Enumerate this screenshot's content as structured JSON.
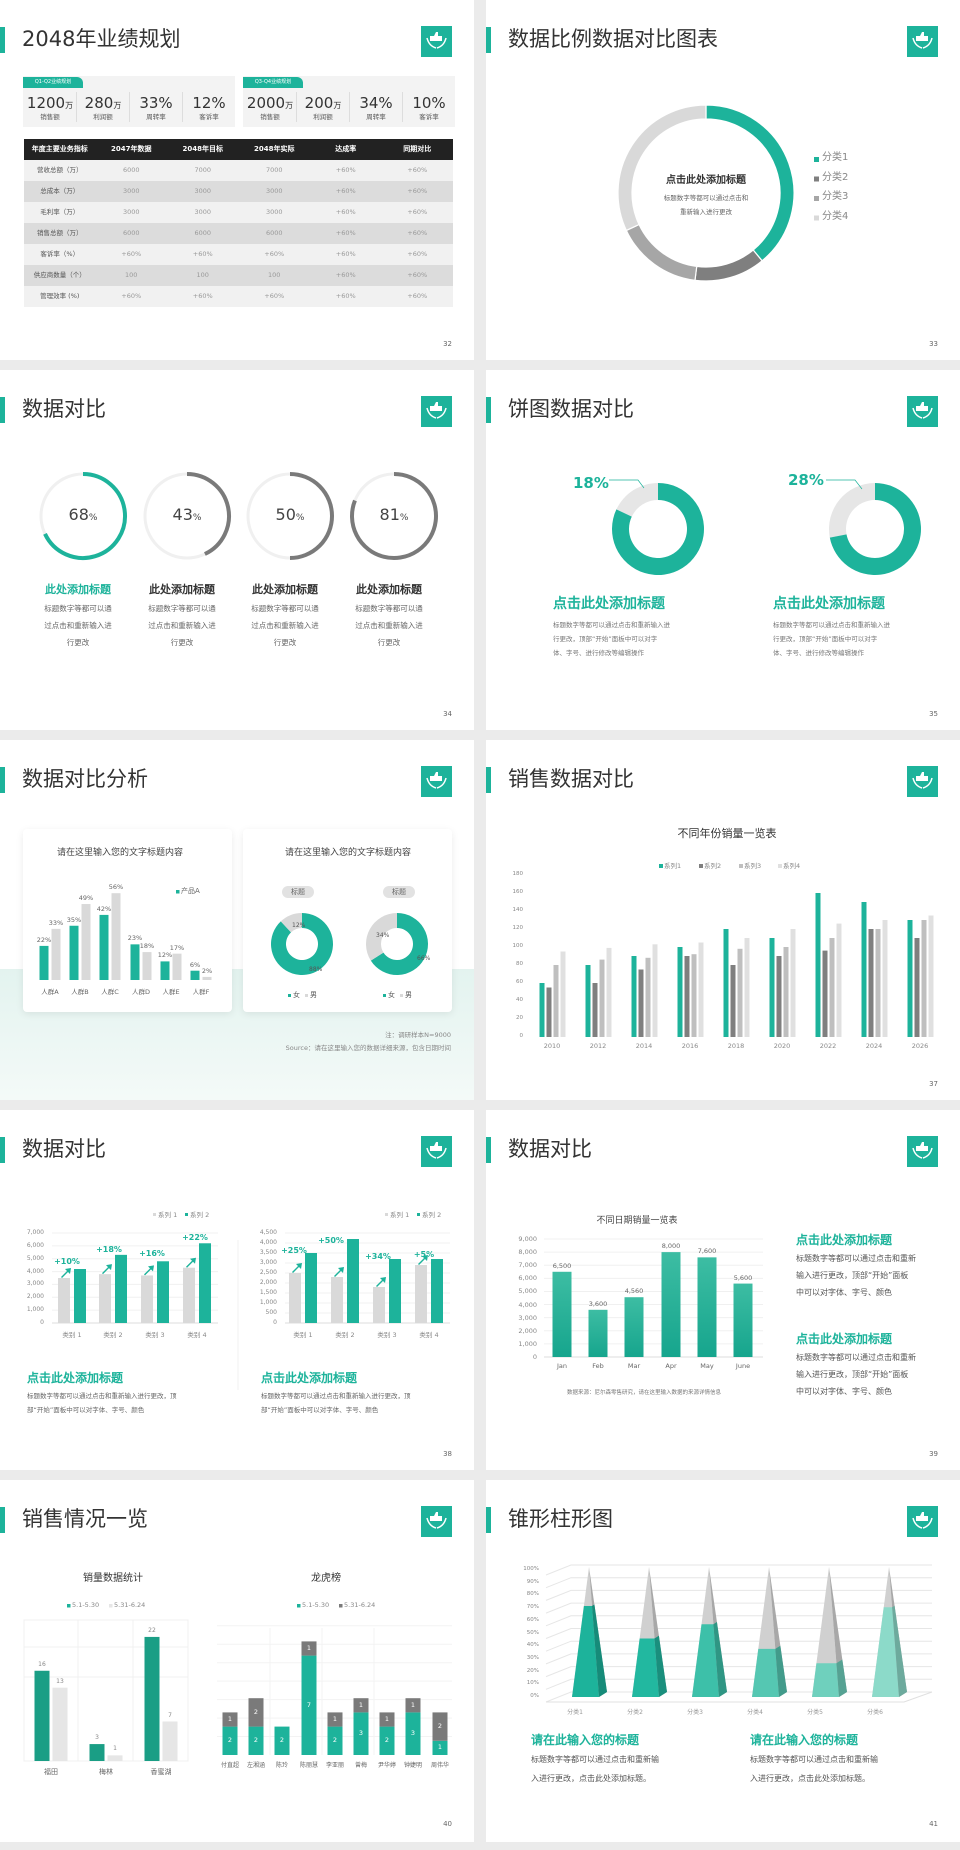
{
  "colors": {
    "accent": "#1db39b",
    "dark_gray": "#7a7a7a",
    "mid_gray": "#a6a6a6",
    "light_gray": "#d9d9d9",
    "header_black": "#222222"
  },
  "slides": [
    {
      "page": "32",
      "title": "2048年业绩规划",
      "panels": [
        {
          "tag": "Q1-Q2业绩规划",
          "stats": [
            {
              "value": "1200",
              "unit": "万",
              "label": "销售额"
            },
            {
              "value": "280",
              "unit": "万",
              "label": "利润额"
            },
            {
              "value": "33%",
              "unit": "",
              "label": "周转率"
            },
            {
              "value": "12%",
              "unit": "",
              "label": "客诉率"
            }
          ]
        },
        {
          "tag": "Q3-Q4业绩规划",
          "stats": [
            {
              "value": "2000",
              "unit": "万",
              "label": "销售额"
            },
            {
              "value": "200",
              "unit": "万",
              "label": "利润额"
            },
            {
              "value": "34%",
              "unit": "",
              "label": "周转率"
            },
            {
              "value": "10%",
              "unit": "",
              "label": "客诉率"
            }
          ]
        }
      ],
      "table": {
        "headers": [
          "年度主要业务指标",
          "2047年数据",
          "2048年目标",
          "2048年实际",
          "达成率",
          "同期对比"
        ],
        "rows": [
          [
            "营收总额（万）",
            "6000",
            "7000",
            "7000",
            "+60%",
            "+60%"
          ],
          [
            "总成本（万）",
            "3000",
            "3000",
            "3000",
            "+60%",
            "+60%"
          ],
          [
            "毛利率（万）",
            "3000",
            "3000",
            "3000",
            "+60%",
            "+60%"
          ],
          [
            "销售总额（万）",
            "6000",
            "6000",
            "6000",
            "+60%",
            "+60%"
          ],
          [
            "客诉率（%）",
            "+60%",
            "+60%",
            "+60%",
            "+60%",
            "+60%"
          ],
          [
            "供应商数量（个）",
            "100",
            "100",
            "100",
            "+60%",
            "+60%"
          ],
          [
            "管理效率 (%)",
            "+60%",
            "+60%",
            "+60%",
            "+60%",
            "+60%"
          ]
        ]
      }
    },
    {
      "page": "33",
      "title": "数据比例数据对比图表",
      "center_title": "点击此处添加标题",
      "center_desc": [
        "标题数字等都可以通过点击和",
        "重新输入进行更改"
      ]
    },
    {
      "page": "34",
      "title": "数据对比",
      "items": [
        {
          "title": "此处添加标题",
          "desc": [
            "标题数字等都可以通",
            "过点击和重新输入进",
            "行更改"
          ]
        },
        {
          "title": "此处添加标题",
          "desc": [
            "标题数字等都可以通",
            "过点击和重新输入进",
            "行更改"
          ]
        },
        {
          "title": "此处添加标题",
          "desc": [
            "标题数字等都可以通",
            "过点击和重新输入进",
            "行更改"
          ]
        },
        {
          "title": "此处添加标题",
          "desc": [
            "标题数字等都可以通",
            "过点击和重新输入进",
            "行更改"
          ]
        }
      ]
    },
    {
      "page": "35",
      "title": "饼图数据对比",
      "items": [
        {
          "label": "18%",
          "title": "点击此处添加标题",
          "desc": [
            "标题数字等都可以通过点击和重新输入进",
            "行更改，顶部“开始”面板中可以对字",
            "体、字号、进行修改等编辑操作"
          ]
        },
        {
          "label": "28%",
          "title": "点击此处添加标题",
          "desc": [
            "标题数字等都可以通过点击和重新输入进",
            "行更改，顶部“开始”面板中可以对字",
            "体、字号、进行修改等编辑操作"
          ]
        }
      ]
    },
    {
      "page": "36",
      "title": "数据对比分析",
      "card_titles": [
        "请在这里输入您的文字标题内容",
        "请在这里输入您的文字标题内容"
      ],
      "pill_labels": [
        "标题",
        "标题"
      ],
      "note": "注：调研样本N=9000",
      "source": "Source：请在这里输入您的数据详细来源，包含日期时间"
    },
    {
      "page": "37",
      "title": "销售数据对比"
    },
    {
      "page": "38",
      "title": "数据对比",
      "items": [
        {
          "title": "点击此处添加标题",
          "desc": [
            "标题数字等都可以通过点击和重新输入进行更改，顶",
            "部“开始”面板中可以对字体、字号、颜色"
          ]
        },
        {
          "title": "点击此处添加标题",
          "desc": [
            "标题数字等都可以通过点击和重新输入进行更改，顶",
            "部“开始”面板中可以对字体、字号、颜色"
          ]
        }
      ]
    },
    {
      "page": "39",
      "title": "数据对比",
      "source": "数据来源：尼尔森零售研究，请在这里输入数据的来源详情信息",
      "items": [
        {
          "title": "点击此处添加标题",
          "desc": [
            "标题数字等都可以通过点击和重新",
            "输入进行更改，顶部“开始”面板",
            "中可以对字体、字号、颜色"
          ]
        },
        {
          "title": "点击此处添加标题",
          "desc": [
            "标题数字等都可以通过点击和重新",
            "输入进行更改，顶部“开始”面板",
            "中可以对字体、字号、颜色"
          ]
        }
      ]
    },
    {
      "page": "40",
      "title": "销售情况一览"
    },
    {
      "page": "41",
      "title": "锥形柱形图",
      "items": [
        {
          "title": "请在此输入您的标题",
          "desc": [
            "标题数字等都可以通过点击和重新输",
            "入进行更改，点击此处添加标题。"
          ]
        },
        {
          "title": "请在此输入您的标题",
          "desc": [
            "标题数字等都可以通过点击和重新输",
            "入进行更改，点击此处添加标题。"
          ]
        }
      ]
    }
  ],
  "chart_data": [
    {
      "type": "pie",
      "slide": "33",
      "categories": [
        "分类1",
        "分类2",
        "分类3",
        "分类4"
      ],
      "values": [
        39,
        13,
        16,
        32
      ],
      "legend": "right"
    },
    {
      "type": "pie",
      "slide": "34",
      "values": [
        68,
        43,
        50,
        81
      ],
      "unit": "%"
    },
    {
      "type": "pie",
      "slide": "35",
      "values": [
        18,
        28
      ],
      "unit": "%"
    },
    {
      "type": "bar",
      "slide": "36",
      "categories": [
        "人群A",
        "人群B",
        "人群C",
        "人群D",
        "人群E",
        "人群F"
      ],
      "series": [
        {
          "name": "产品A",
          "values": [
            22,
            35,
            42,
            23,
            12,
            6
          ]
        },
        {
          "values": [
            33,
            49,
            56,
            18,
            17,
            2
          ]
        }
      ],
      "unit": "%",
      "legend": "top-right"
    },
    {
      "type": "pie",
      "slide": "36",
      "legend_labels": [
        "女",
        "男"
      ],
      "charts": [
        {
          "values": [
            88,
            12
          ]
        },
        {
          "values": [
            66,
            34
          ]
        }
      ],
      "unit": "%"
    },
    {
      "type": "bar",
      "slide": "37",
      "title": "不同年份销量一览表",
      "categories": [
        "2010",
        "2012",
        "2014",
        "2016",
        "2018",
        "2020",
        "2022",
        "2024",
        "2026"
      ],
      "series": [
        {
          "name": "系列1",
          "values": [
            60,
            80,
            90,
            100,
            120,
            110,
            160,
            150,
            130
          ]
        },
        {
          "name": "系列2",
          "values": [
            55,
            60,
            75,
            90,
            80,
            90,
            96,
            120,
            110
          ]
        },
        {
          "name": "系列3",
          "values": [
            80,
            86,
            88,
            92,
            98,
            100,
            110,
            120,
            130
          ]
        },
        {
          "name": "系列4",
          "values": [
            95,
            99,
            103,
            105,
            110,
            120,
            126,
            130,
            135
          ]
        }
      ],
      "yticks": [
        "0",
        "20",
        "40",
        "60",
        "80",
        "100",
        "120",
        "140",
        "160",
        "180"
      ],
      "ylim": [
        0,
        180
      ],
      "legend": "top",
      "grid": false
    },
    {
      "type": "bar",
      "slide": "38",
      "categories": [
        "类别 1",
        "类别 2",
        "类别 3",
        "类别 4"
      ],
      "series": [
        {
          "name": "系列 1",
          "values": [
            3500,
            3800,
            3700,
            4300
          ]
        },
        {
          "name": "系列 2",
          "values": [
            4200,
            5300,
            4800,
            6200
          ]
        }
      ],
      "annotations": [
        "+10%",
        "+18%",
        "+16%",
        "+22%"
      ],
      "yticks": [
        "0",
        "1,000",
        "2,000",
        "3,000",
        "4,000",
        "5,000",
        "6,000",
        "7,000"
      ],
      "ylim": [
        0,
        7000
      ],
      "legend": "top-right",
      "grid": true
    },
    {
      "type": "bar",
      "slide": "38",
      "categories": [
        "类别 1",
        "类别 2",
        "类别 3",
        "类别 4"
      ],
      "series": [
        {
          "name": "系列 1",
          "values": [
            2500,
            2300,
            1800,
            2900
          ]
        },
        {
          "name": "系列 2",
          "values": [
            3500,
            4200,
            3200,
            3200
          ]
        }
      ],
      "annotations": [
        "+25%",
        "+50%",
        "+34%",
        "+5%"
      ],
      "yticks": [
        "0",
        "500",
        "1,000",
        "1,500",
        "2,000",
        "2,500",
        "3,000",
        "3,500",
        "4,000",
        "4,500"
      ],
      "ylim": [
        0,
        4500
      ],
      "legend": "top-right",
      "grid": true
    },
    {
      "type": "bar",
      "slide": "39",
      "title": "不同日期销量一览表",
      "categories": [
        "Jan",
        "Feb",
        "Mar",
        "Apr",
        "May",
        "June"
      ],
      "values": [
        6500,
        3600,
        4560,
        8000,
        7600,
        5600
      ],
      "data_labels": [
        "6,500",
        "3,600",
        "4,560",
        "8,000",
        "7,600",
        "5,600"
      ],
      "yticks": [
        "0",
        "1,000",
        "2,000",
        "3,000",
        "4,000",
        "5,000",
        "6,000",
        "7,000",
        "8,000",
        "9,000"
      ],
      "ylim": [
        0,
        9000
      ],
      "grid": true
    },
    {
      "type": "bar",
      "slide": "40",
      "title": "销量数据统计",
      "categories": [
        "福田",
        "梅林",
        "香蜜湖"
      ],
      "series": [
        {
          "name": "5.1-5.30",
          "values": [
            16,
            3,
            22
          ]
        },
        {
          "name": "5.31-6.24",
          "values": [
            13,
            1,
            7
          ]
        }
      ],
      "legend": "top",
      "grid": true
    },
    {
      "type": "bar",
      "slide": "40",
      "title": "龙虎榜",
      "stacked": true,
      "categories": [
        "付直超",
        "左湘涵",
        "陈玲",
        "陈丽慧",
        "李亚丽",
        "曾梅",
        "尹华婷",
        "钟婕明",
        "周伟华"
      ],
      "series": [
        {
          "name": "5.1-5.30",
          "values": [
            2,
            2,
            2,
            7,
            2,
            3,
            2,
            3,
            1
          ]
        },
        {
          "name": "5.31-6.24",
          "values": [
            1,
            2,
            0,
            1,
            1,
            1,
            1,
            1,
            2
          ]
        }
      ],
      "legend": "top",
      "grid": true
    },
    {
      "type": "bar",
      "slide": "41",
      "categories": [
        "分类1",
        "分类2",
        "分类3",
        "分类4",
        "分类5",
        "分类6"
      ],
      "values": [
        70,
        45,
        56,
        37,
        26,
        69
      ],
      "unit": "%",
      "shape": "cone",
      "yticks": [
        "0%",
        "10%",
        "20%",
        "30%",
        "40%",
        "50%",
        "60%",
        "70%",
        "80%",
        "90%",
        "100%"
      ],
      "ylim": [
        0,
        100
      ],
      "grid": true
    }
  ]
}
